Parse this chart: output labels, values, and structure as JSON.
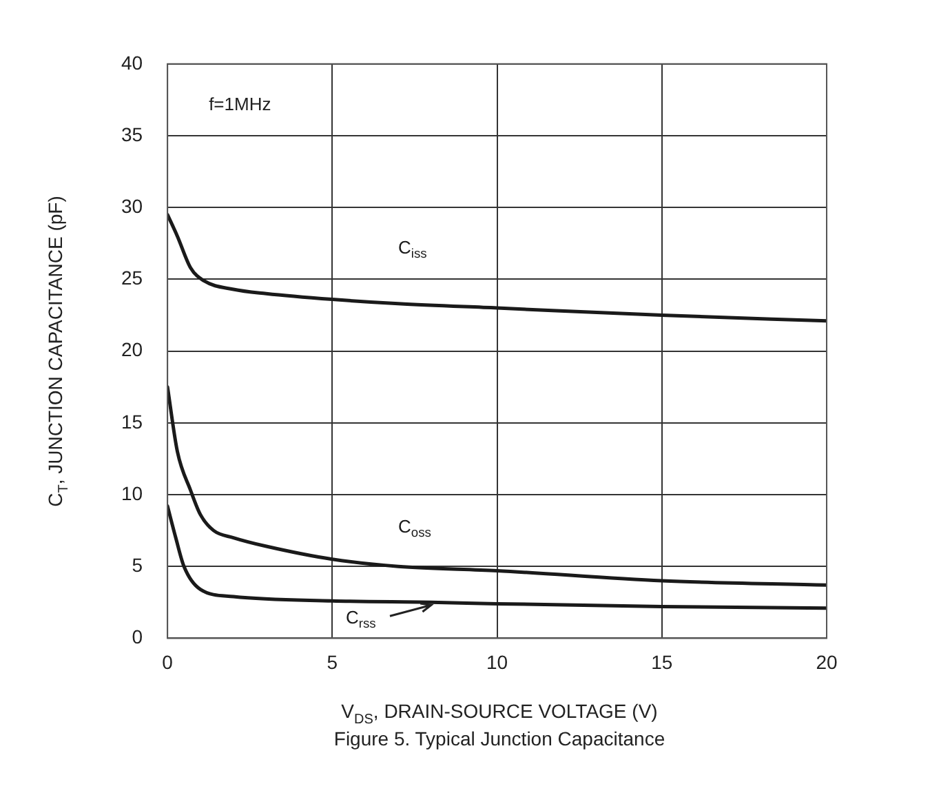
{
  "chart_data": {
    "type": "line",
    "title": "Figure 5. Typical Junction Capacitance",
    "xlabel": "V$_{DS}$, DRAIN-SOURCE VOLTAGE (V)",
    "ylabel": "C$_{T}$, JUNCTION CAPACITANCE (pF)",
    "annotations": [
      "f=1MHz"
    ],
    "xlim": [
      0,
      20
    ],
    "xticks": [
      0,
      5,
      10,
      15,
      20
    ],
    "ylim": [
      0,
      40
    ],
    "yticks": [
      0,
      5,
      10,
      15,
      20,
      25,
      30,
      35,
      40
    ],
    "grid": true,
    "marker": "none",
    "line_style": "solid",
    "series": [
      {
        "name": "C$_{iss}$",
        "color": "#1a1a1a",
        "x": [
          0,
          0.3,
          0.7,
          1.1,
          2,
          3,
          5,
          7,
          10,
          15,
          20
        ],
        "values": [
          29.5,
          28,
          25.8,
          24.9,
          24.3,
          24,
          23.6,
          23.3,
          23,
          22.5,
          22.1
        ]
      },
      {
        "name": "C$_{oss}$",
        "color": "#1a1a1a",
        "x": [
          0,
          0.3,
          0.7,
          1,
          1.4,
          2,
          3,
          5,
          7,
          10,
          15,
          20
        ],
        "values": [
          17.5,
          13,
          10.3,
          8.6,
          7.5,
          7,
          6.4,
          5.5,
          5,
          4.7,
          4,
          3.7
        ]
      },
      {
        "name": "C$_{rss}$",
        "color": "#1a1a1a",
        "x": [
          0,
          0.25,
          0.5,
          1,
          2,
          5,
          8,
          10,
          15,
          20
        ],
        "values": [
          9.2,
          7,
          5,
          3.4,
          2.9,
          2.6,
          2.5,
          2.4,
          2.2,
          2.1
        ]
      }
    ]
  }
}
